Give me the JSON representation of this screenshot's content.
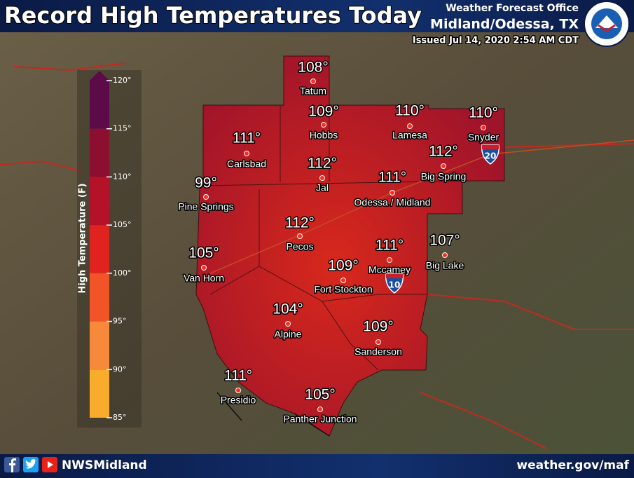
{
  "header": {
    "title": "Record High Temperatures Today",
    "office": "Weather Forecast Office",
    "location": "Midland/Odessa, TX",
    "issued": "Issued Jul 14, 2020 2:54 AM CDT"
  },
  "cities": [
    {
      "name": "Tatum",
      "temp": "108°"
    },
    {
      "name": "Hobbs",
      "temp": "109°"
    },
    {
      "name": "Lamesa",
      "temp": "110°"
    },
    {
      "name": "Snyder",
      "temp": "110°"
    },
    {
      "name": "Carlsbad",
      "temp": "111°"
    },
    {
      "name": "Jal",
      "temp": "112°"
    },
    {
      "name": "Big Spring",
      "temp": "112°"
    },
    {
      "name": "Pine Springs",
      "temp": "99°"
    },
    {
      "name": "Odessa / Midland",
      "temp": "111°"
    },
    {
      "name": "Pecos",
      "temp": "112°"
    },
    {
      "name": "Mccamey",
      "temp": "111°"
    },
    {
      "name": "Big Lake",
      "temp": "107°"
    },
    {
      "name": "Van Horn",
      "temp": "105°"
    },
    {
      "name": "Fort Stockton",
      "temp": "109°"
    },
    {
      "name": "Alpine",
      "temp": "104°"
    },
    {
      "name": "Sanderson",
      "temp": "109°"
    },
    {
      "name": "Presidio",
      "temp": "111°"
    },
    {
      "name": "Panther Junction",
      "temp": "105°"
    }
  ],
  "highways": [
    "20",
    "10"
  ],
  "legend": {
    "axis_label": "High Temperature (F)",
    "ticks": [
      {
        "value": 120,
        "label": "120°"
      },
      {
        "value": 115,
        "label": "115°"
      },
      {
        "value": 110,
        "label": "110°"
      },
      {
        "value": 105,
        "label": "105°"
      },
      {
        "value": 100,
        "label": "100°"
      },
      {
        "value": 95,
        "label": "95°"
      },
      {
        "value": 90,
        "label": "90°"
      },
      {
        "value": 85,
        "label": "85°"
      }
    ],
    "colors": [
      "#5c0a48",
      "#8c0f30",
      "#b5122a",
      "#e0231e",
      "#f25427",
      "#f7893b",
      "#f9ab2c"
    ]
  },
  "footer": {
    "social": "NWSMidland",
    "url": "weather.gov/maf"
  }
}
